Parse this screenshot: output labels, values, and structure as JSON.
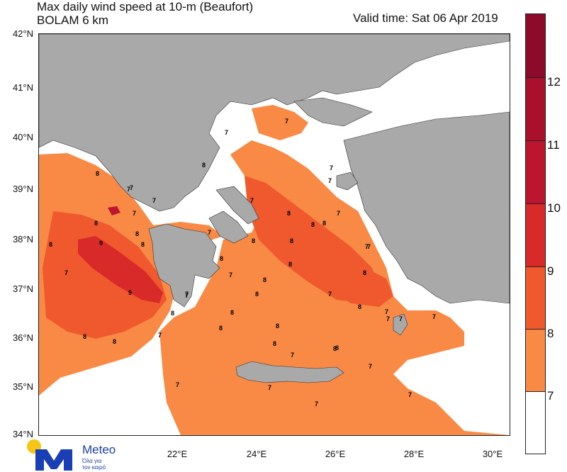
{
  "header": {
    "title_line1": "Max daily wind speed at 10-m (Beaufort)",
    "title_line2": "BOLAM 6 km",
    "valid_time": "Valid time: Sat 06 Apr 2019"
  },
  "axes": {
    "lat_labels": [
      "42°N",
      "41°N",
      "40°N",
      "39°N",
      "38°N",
      "37°N",
      "36°N",
      "35°N",
      "34°N"
    ],
    "lon_labels": [
      "22°E",
      "24°E",
      "26°E",
      "28°E",
      "30°E"
    ]
  },
  "colorbar": {
    "labels": [
      "12",
      "11",
      "10",
      "9",
      "8",
      "7"
    ],
    "colors": {
      "ge12": "#8c0a2a",
      "b11": "#a8102c",
      "b10": "#bd1530",
      "b9": "#d92a2a",
      "b8": "#f0582e",
      "b7": "#f88a45",
      "lt7": "#ffffff"
    }
  },
  "map_labels": [
    "7",
    "7",
    "8",
    "7",
    "8",
    "7",
    "8",
    "8",
    "7",
    "8",
    "9",
    "7",
    "9",
    "8",
    "8",
    "7",
    "8",
    "7",
    "8",
    "7",
    "8",
    "7",
    "7",
    "7",
    "7",
    "8",
    "8",
    "8",
    "7",
    "7",
    "8",
    "8",
    "8",
    "7",
    "8",
    "7",
    "8",
    "7",
    "8",
    "8",
    "7",
    "8",
    "7",
    "7",
    "8",
    "7",
    "7",
    "8",
    "7",
    "7",
    "8",
    "7",
    "7",
    "7",
    "8",
    "8",
    "7"
  ],
  "logo": {
    "name": "Meteo",
    "tagline_line1": "Όλα για",
    "tagline_line2": "τον καιρό"
  }
}
